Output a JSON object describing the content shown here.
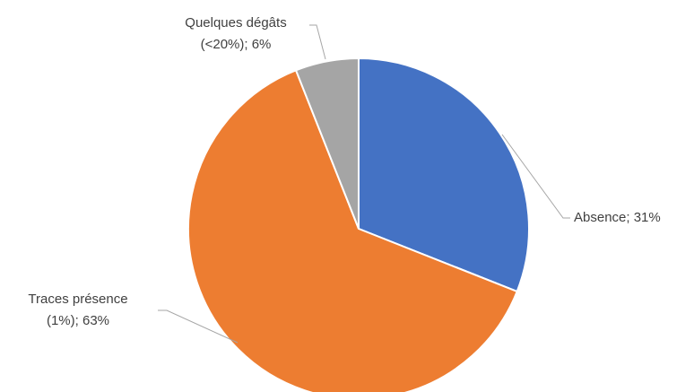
{
  "chart_data": {
    "type": "pie",
    "categories": [
      "Absence",
      "Traces présence (1%)",
      "Quelques dégâts (<20%)"
    ],
    "values": [
      31,
      63,
      6
    ],
    "value_labels": [
      "31%",
      "63%",
      "6%"
    ],
    "separator": "; ",
    "colors": [
      "#4472c4",
      "#ed7d31",
      "#a5a5a5"
    ]
  }
}
